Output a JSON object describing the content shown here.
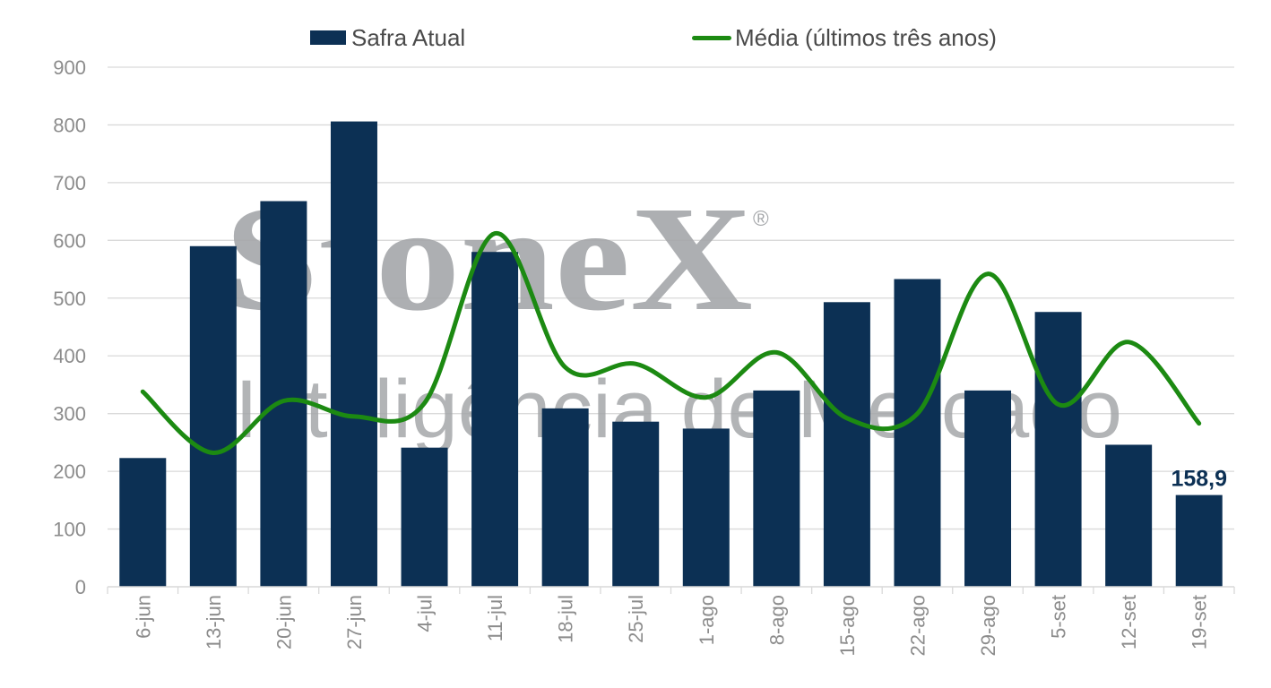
{
  "colors": {
    "bar": "#0c3054",
    "line": "#1c8a12",
    "grid": "#d9d9d9",
    "axis_text": "#8c8c8c",
    "legend_text": "#4a4a4a",
    "watermark": "#a5a7aa"
  },
  "watermark": {
    "brand": "StoneX",
    "registered": "®",
    "tagline": "Inteligência de Mercado"
  },
  "chart_data": {
    "type": "bar",
    "categories": [
      "6-jun",
      "13-jun",
      "20-jun",
      "27-jun",
      "4-jul",
      "11-jul",
      "18-jul",
      "25-jul",
      "1-ago",
      "8-ago",
      "15-ago",
      "22-ago",
      "29-ago",
      "5-set",
      "12-set",
      "19-set"
    ],
    "series": [
      {
        "name": "Safra Atual",
        "type": "bar",
        "values": [
          223,
          590,
          668,
          806,
          241,
          580,
          309,
          286,
          274,
          340,
          493,
          533,
          340,
          476,
          246,
          158.9
        ]
      },
      {
        "name": "Média (últimos três anos)",
        "type": "line",
        "values": [
          338,
          232,
          322,
          295,
          318,
          612,
          380,
          386,
          328,
          406,
          292,
          300,
          542,
          316,
          424,
          283
        ]
      }
    ],
    "data_labels": [
      {
        "index": 15,
        "text": "158,9"
      }
    ],
    "yticks": [
      "0",
      "100",
      "200",
      "300",
      "400",
      "500",
      "600",
      "700",
      "800",
      "900"
    ],
    "ylim": [
      0,
      900
    ],
    "grid": true,
    "legend_position": "top"
  }
}
